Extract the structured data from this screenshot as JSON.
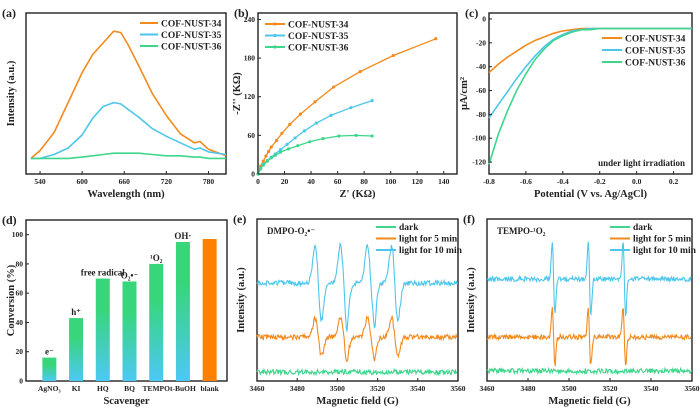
{
  "figure": {
    "colors": {
      "cof34": "#f28a1e",
      "cof35": "#4ec6ec",
      "cof36": "#3dd68c",
      "dark": "#3dd68c",
      "light5": "#f28a1e",
      "light10": "#4ec6ec",
      "bar_top": "#37d67a",
      "bar_bottom": "#4cc8f5",
      "blank_bar": "#ff8000"
    }
  },
  "chart_data": [
    {
      "panel": "(a)",
      "type": "line",
      "title": "",
      "xlabel": "Wavelength (nm)",
      "ylabel": "Intensity (a.u.)",
      "xlim": [
        520,
        805
      ],
      "ylim": [
        -0.12,
        1.12
      ],
      "xticks": [
        540,
        600,
        660,
        720,
        780
      ],
      "yticks": [],
      "legend": "top-right",
      "grid": false,
      "x": [
        527,
        540,
        560,
        580,
        600,
        615,
        630,
        645,
        655,
        665,
        680,
        700,
        720,
        740,
        760,
        768,
        780,
        805
      ],
      "series": [
        {
          "name": "COF-NUST-34",
          "color_key": "cof34",
          "values": [
            0.0,
            0.06,
            0.2,
            0.43,
            0.66,
            0.8,
            0.89,
            0.98,
            0.97,
            0.88,
            0.72,
            0.5,
            0.33,
            0.19,
            0.12,
            0.13,
            0.07,
            0.02
          ]
        },
        {
          "name": "COF-NUST-35",
          "color_key": "cof35",
          "values": [
            0.0,
            0.0,
            0.03,
            0.08,
            0.18,
            0.31,
            0.4,
            0.43,
            0.42,
            0.38,
            0.32,
            0.23,
            0.17,
            0.12,
            0.07,
            0.08,
            0.05,
            0.03
          ]
        },
        {
          "name": "COF-NUST-36",
          "color_key": "cof36",
          "values": [
            0.0,
            0.0,
            0.0,
            0.0,
            0.01,
            0.02,
            0.03,
            0.04,
            0.04,
            0.04,
            0.04,
            0.03,
            0.02,
            0.02,
            0.01,
            0.01,
            0.0,
            0.0
          ]
        }
      ]
    },
    {
      "panel": "(b)",
      "type": "line",
      "title": "",
      "xlabel": "Z' (KΩ)",
      "ylabel": "-Z'' (KΩ)",
      "xlim": [
        0,
        150
      ],
      "ylim": [
        0,
        250
      ],
      "xticks": [
        0,
        20,
        40,
        60,
        80,
        100,
        120,
        140
      ],
      "yticks": [
        0,
        60,
        120,
        180,
        240
      ],
      "legend": "top-left",
      "grid": false,
      "markers": true,
      "series": [
        {
          "name": "COF-NUST-34",
          "color_key": "cof34",
          "x": [
            0,
            2,
            4,
            6,
            8,
            10,
            14,
            18,
            24,
            32,
            43,
            57,
            77,
            102,
            134
          ],
          "y": [
            0,
            12,
            20,
            28,
            35,
            42,
            52,
            63,
            77,
            93,
            112,
            135,
            159,
            184,
            210
          ]
        },
        {
          "name": "COF-NUST-35",
          "color_key": "cof35",
          "x": [
            0,
            2,
            4,
            7,
            10,
            13,
            17,
            22,
            28,
            35,
            44,
            55,
            70,
            86
          ],
          "y": [
            0,
            9,
            15,
            21,
            26,
            31,
            38,
            46,
            56,
            67,
            79,
            91,
            103,
            114
          ]
        },
        {
          "name": "COF-NUST-36",
          "color_key": "cof36",
          "x": [
            0,
            2,
            4,
            7,
            10,
            13,
            17,
            23,
            30,
            39,
            49,
            61,
            74,
            86
          ],
          "y": [
            0,
            8,
            14,
            20,
            25,
            29,
            34,
            39,
            44,
            50,
            55,
            59,
            60,
            59
          ]
        }
      ]
    },
    {
      "panel": "(c)",
      "type": "line",
      "title": "",
      "xlabel": "Potential (V vs. Ag/AgCl)",
      "ylabel": "μA/cm²",
      "xlim": [
        -0.8,
        0.3
      ],
      "ylim": [
        -130,
        5
      ],
      "xticks": [
        -0.8,
        -0.6,
        -0.4,
        -0.2,
        0.0,
        0.2
      ],
      "yticks": [
        0,
        -20,
        -40,
        -60,
        -80,
        -100,
        -120
      ],
      "legend": "top-right",
      "annotation": "under light irradiation",
      "grid": false,
      "x": [
        -0.8,
        -0.75,
        -0.7,
        -0.65,
        -0.6,
        -0.55,
        -0.5,
        -0.45,
        -0.4,
        -0.35,
        -0.3,
        -0.25,
        -0.2,
        -0.1,
        0.0,
        0.1,
        0.2,
        0.3
      ],
      "series": [
        {
          "name": "COF-NUST-34",
          "color_key": "cof34",
          "values": [
            -45,
            -38,
            -32,
            -27,
            -22,
            -18,
            -15,
            -12,
            -10,
            -9,
            -8,
            -8,
            -8,
            -8,
            -8,
            -8,
            -8,
            -8
          ]
        },
        {
          "name": "COF-NUST-35",
          "color_key": "cof35",
          "values": [
            -83,
            -72,
            -61,
            -50,
            -40,
            -31,
            -23,
            -17,
            -13,
            -10,
            -9,
            -8,
            -8,
            -8,
            -8,
            -8,
            -8,
            -8
          ]
        },
        {
          "name": "COF-NUST-36",
          "color_key": "cof36",
          "values": [
            -122,
            -97,
            -77,
            -60,
            -46,
            -34,
            -25,
            -18,
            -14,
            -11,
            -9,
            -9,
            -8,
            -8,
            -8,
            -8,
            -8,
            -8
          ]
        }
      ]
    },
    {
      "panel": "(d)",
      "type": "bar",
      "title": "",
      "xlabel": "Scavenger",
      "ylabel": "Conversion (%)",
      "ylim": [
        0,
        110
      ],
      "yticks": [
        0,
        20,
        40,
        60,
        80,
        100
      ],
      "grid": false,
      "categories": [
        "AgNO₃",
        "KI",
        "HQ",
        "BQ",
        "TEMPO",
        "t-BuOH",
        "blank"
      ],
      "values": [
        16,
        43,
        70,
        68,
        80,
        95,
        97
      ],
      "bar_labels": [
        "e⁻",
        "h⁺",
        "free radical",
        "O₂•⁻",
        "¹O₂",
        "OH·",
        ""
      ]
    },
    {
      "panel": "(e)",
      "type": "line",
      "title": "",
      "annotation": "DMPO-O₂•⁻",
      "xlabel": "Magnetic field (G)",
      "ylabel": "Intensity (a.u.)",
      "xlim": [
        3460,
        3560
      ],
      "xticks": [
        3460,
        3480,
        3500,
        3520,
        3540,
        3560
      ],
      "yticks": [],
      "legend": "top-right",
      "grid": false,
      "series": [
        {
          "name": "dark",
          "color_key": "dark",
          "offset": 0,
          "amplitude": 0
        },
        {
          "name": "light for 5 min",
          "color_key": "light5",
          "offset": 1,
          "amplitude": 0.5
        },
        {
          "name": "light for 10 min",
          "color_key": "light10",
          "offset": 2,
          "amplitude": 1.0
        }
      ],
      "peak_centers_G": [
        3490.5,
        3503,
        3516.5,
        3528.5
      ],
      "shoulder_centers_G": [
        3504,
        3518
      ]
    },
    {
      "panel": "(f)",
      "type": "line",
      "title": "",
      "annotation": "TEMPO-¹O₂",
      "xlabel": "Magnetic field (G)",
      "ylabel": "Intensity (a.u.)",
      "xlim": [
        3460,
        3560
      ],
      "xticks": [
        3460,
        3480,
        3500,
        3520,
        3540,
        3560
      ],
      "yticks": [],
      "legend": "top-right",
      "grid": false,
      "series": [
        {
          "name": "dark",
          "color_key": "dark",
          "offset": 0,
          "amplitude": 0
        },
        {
          "name": "light for 5 min",
          "color_key": "light5",
          "offset": 1,
          "amplitude": 0.75
        },
        {
          "name": "light for 10 min",
          "color_key": "light10",
          "offset": 2,
          "amplitude": 1.0
        }
      ],
      "peak_centers_G": [
        3492.5,
        3510,
        3527
      ]
    }
  ]
}
